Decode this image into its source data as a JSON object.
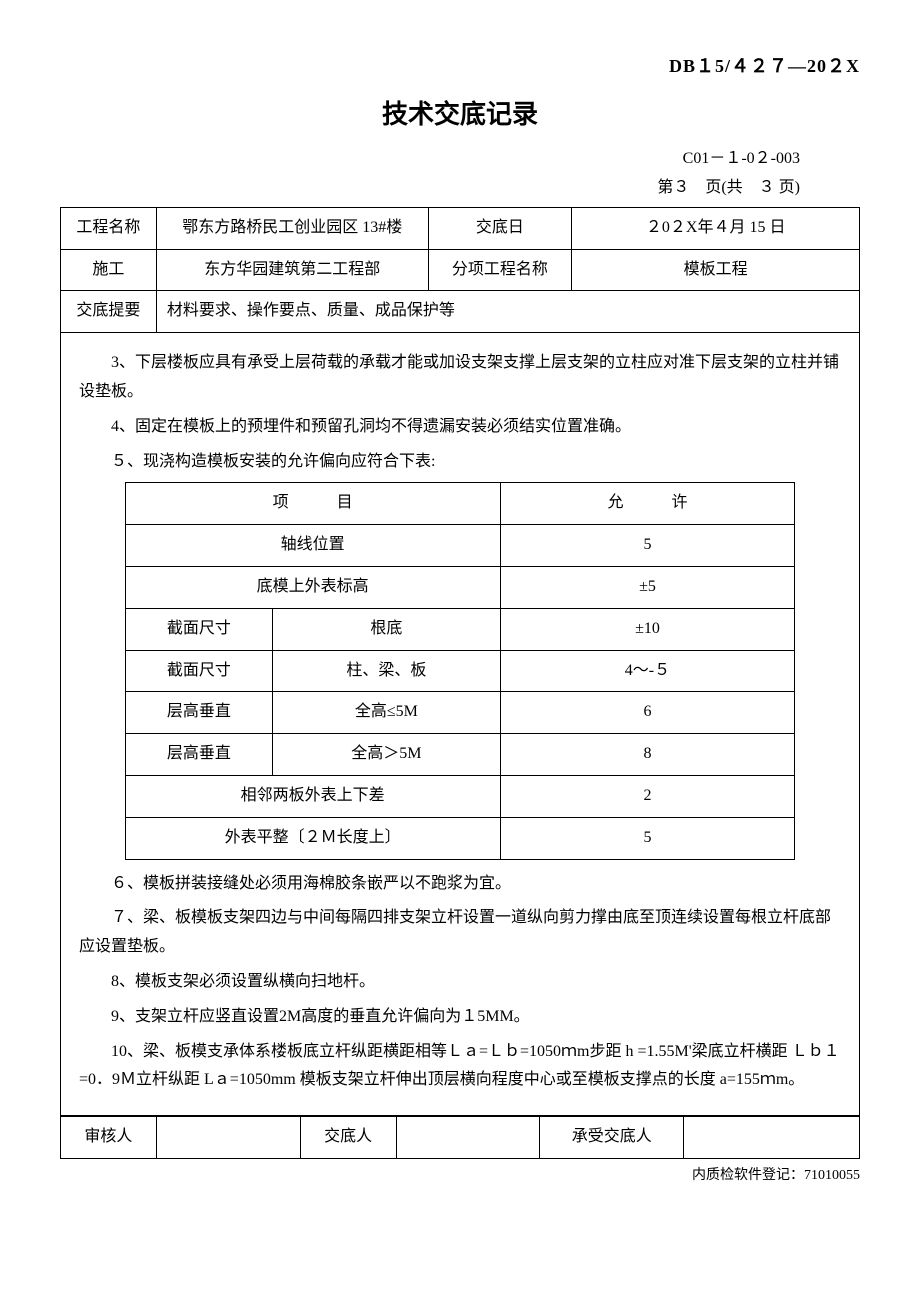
{
  "header_code": "DB１5/４２７—20２X",
  "title": "技术交底记录",
  "doc_code": "C01－１-0２-003",
  "page_info": "第３　页(共　３ 页)",
  "info": {
    "project_label": "工程名称",
    "project_value": "鄂东方路桥民工创业园区 13#楼",
    "date_label": "交底日",
    "date_value": "２0２X年４月 15 日",
    "construction_label": "施工",
    "construction_value": "东方华园建筑第二工程部",
    "subproject_label": "分项工程名称",
    "subproject_value": "模板工程",
    "summary_label": "交底提要",
    "summary_value": "材料要求、操作要点、质量、成品保护等"
  },
  "paragraphs": {
    "p3": "3、下层楼板应具有承受上层荷载的承载才能或加设支架支撑上层支架的立柱应对准下层支架的立柱并铺设垫板。",
    "p4": "4、固定在模板上的预埋件和预留孔洞均不得遗漏安装必须结实位置准确。",
    "p5": "５、现浇构造模板安装的允许偏向应符合下表:",
    "p6": "６、模板拼装接缝处必须用海棉胶条嵌严以不跑浆为宜。",
    "p7": "７、梁、板模板支架四边与中间每隔四排支架立杆设置一道纵向剪力撑由底至顶连续设置每根立杆底部应设置垫板。",
    "p8": "8、模板支架必须设置纵横向扫地杆。",
    "p9": "9、支架立杆应竖直设置2M高度的垂直允许偏向为１5MM。",
    "p10": "10、梁、板模支承体系楼板底立杆纵距横距相等Ｌａ=Ｌｂ=1050ｍm步距 h =1.55M'梁底立杆横距 Ｌｂ１=0．9Ｍ立杆纵距 Lａ=1050mm 模板支架立杆伸出顶层横向程度中心或至模板支撑点的长度 a=155ｍm。"
  },
  "tolerance": {
    "col1": "项　　　目",
    "col2": "允　　　许",
    "rows": [
      {
        "c1": "",
        "c2": "轴线位置",
        "span": true,
        "v": "5"
      },
      {
        "c1": "",
        "c2": "底模上外表标高",
        "span": true,
        "v": "±5"
      },
      {
        "c1": "截面尺寸",
        "c2": "根底",
        "span": false,
        "v": "±10"
      },
      {
        "c1": "截面尺寸",
        "c2": "柱、梁、板",
        "span": false,
        "v": "4～-５"
      },
      {
        "c1": "层高垂直",
        "c2": "全高≤5M",
        "span": false,
        "v": "6"
      },
      {
        "c1": "层高垂直",
        "c2": "全高＞5M",
        "span": false,
        "v": "8"
      },
      {
        "c1": "",
        "c2": "相邻两板外表上下差",
        "span": true,
        "v": "2"
      },
      {
        "c1": "",
        "c2": "外表平整〔２Ｍ长度上〕",
        "span": true,
        "v": "5"
      }
    ]
  },
  "sign": {
    "reviewer": "审核人",
    "disclosure": "交底人",
    "receiver": "承受交底人"
  },
  "footer_note": "内质检软件登记：71010055"
}
